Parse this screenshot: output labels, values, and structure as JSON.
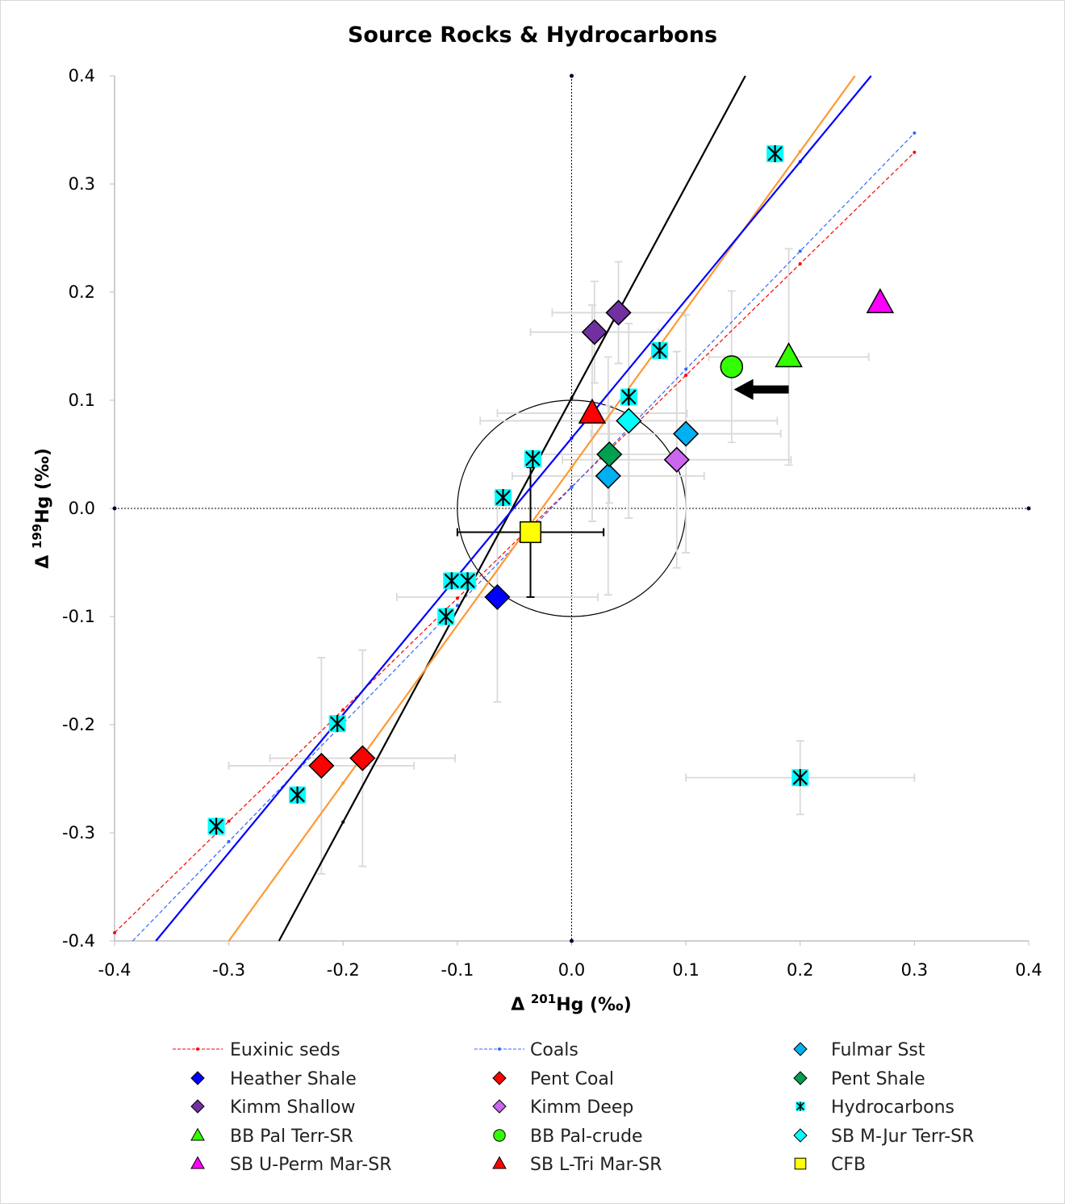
{
  "chart_data": {
    "type": "scatter",
    "title": "Source Rocks & Hydrocarbons",
    "xlabel": {
      "prefix": "Δ ",
      "sup": "201",
      "suffix": "Hg (‰)"
    },
    "ylabel": {
      "prefix": "Δ ",
      "sup": "199",
      "suffix": "Hg (‰)"
    },
    "xlim": [
      -0.4,
      0.4
    ],
    "ylim": [
      -0.4,
      0.4
    ],
    "xticks": [
      "-0.4",
      "-0.3",
      "-0.2",
      "-0.1",
      "0.0",
      "0.1",
      "0.2",
      "0.3",
      "0.4"
    ],
    "yticks": [
      "0.4",
      "0.3",
      "0.2",
      "0.1",
      "0.0",
      "-0.1",
      "-0.2",
      "-0.3",
      "-0.4"
    ],
    "grid": false,
    "legend_placement": "bottom",
    "reference_lines": {
      "x0": true,
      "y0": true,
      "style": "dotted"
    },
    "circle": {
      "center": [
        0,
        0
      ],
      "radius": 0.1
    },
    "arrow": {
      "from": [
        0.19,
        0.11
      ],
      "to": [
        0.142,
        0.11
      ],
      "color": "#000000"
    },
    "lines": [
      {
        "name": "Euxinic seds",
        "color": "#FF0000",
        "style": "dashed",
        "slope": 1.031,
        "intercept": 0.02,
        "x_range": [
          -0.4,
          0.3
        ],
        "marker_x": [
          -0.4,
          -0.3,
          -0.2,
          -0.1,
          0,
          0.1,
          0.2,
          0.3
        ]
      },
      {
        "name": "Coals",
        "color": "#3366FF",
        "style": "dashed",
        "slope": 1.092,
        "intercept": 0.0195,
        "x_range": [
          -0.385,
          0.3
        ],
        "marker_x": [
          -0.3,
          -0.2,
          -0.1,
          0,
          0.1,
          0.2,
          0.3
        ]
      },
      {
        "color": "#000000",
        "style": "solid",
        "slope": 1.96,
        "intercept": 0.102,
        "x_range": [
          -0.4,
          0.4
        ],
        "marker_x": [
          -0.2,
          0
        ]
      },
      {
        "color": "#FF9933",
        "style": "solid",
        "slope": 1.46,
        "intercept": 0.038,
        "x_range": [
          -0.4,
          0.4
        ],
        "marker_x": [
          -0.2,
          0,
          0.2
        ]
      },
      {
        "color": "#0000FF",
        "style": "solid",
        "slope": 1.278,
        "intercept": 0.065,
        "x_range": [
          -0.4,
          0.4
        ],
        "marker_x": [
          0,
          0.2
        ]
      }
    ],
    "series": [
      {
        "name": "Heather Shale",
        "marker": "diamond",
        "color": "#0000FF",
        "points": [
          {
            "x": -0.065,
            "y": -0.082,
            "xerr": 0.088,
            "yerr": 0.097
          }
        ]
      },
      {
        "name": "Pent Coal",
        "marker": "diamond",
        "color": "#FF0000",
        "points": [
          {
            "x": -0.219,
            "y": -0.238,
            "xerr": 0.081,
            "yerr": 0.1
          },
          {
            "x": -0.183,
            "y": -0.231,
            "xerr": 0.081,
            "yerr": 0.1
          }
        ]
      },
      {
        "name": "Kimm Shallow",
        "marker": "diamond",
        "color": "#7030A0",
        "points": [
          {
            "x": 0.02,
            "y": 0.163,
            "xerr": 0.056,
            "yerr": 0.047
          },
          {
            "x": 0.041,
            "y": 0.181,
            "xerr": 0.058,
            "yerr": 0.047
          }
        ]
      },
      {
        "name": "Kimm Deep",
        "marker": "diamond",
        "color": "#CC66EE",
        "points": [
          {
            "x": 0.092,
            "y": 0.045,
            "xerr": 0.1,
            "yerr": 0.1
          }
        ]
      },
      {
        "name": "Fulmar Sst",
        "marker": "diamond",
        "color": "#00B0F0",
        "points": [
          {
            "x": 0.032,
            "y": 0.03,
            "xerr": 0.084,
            "yerr": 0.11
          },
          {
            "x": 0.1,
            "y": 0.069,
            "xerr": 0.083,
            "yerr": 0.11
          }
        ]
      },
      {
        "name": "Pent Shale",
        "marker": "diamond",
        "color": "#00A050",
        "points": [
          {
            "x": 0.033,
            "y": 0.05,
            "xerr": 0.064,
            "yerr": 0.045
          }
        ]
      },
      {
        "name": "Hydrocarbons",
        "marker": "asterisk-square",
        "color": "#00FFFF",
        "points": [
          {
            "x": 0.178,
            "y": 0.328
          },
          {
            "x": 0.077,
            "y": 0.146
          },
          {
            "x": 0.05,
            "y": 0.103
          },
          {
            "x": -0.034,
            "y": 0.046
          },
          {
            "x": -0.06,
            "y": 0.01
          },
          {
            "x": -0.105,
            "y": -0.067
          },
          {
            "x": -0.091,
            "y": -0.067
          },
          {
            "x": -0.11,
            "y": -0.1
          },
          {
            "x": -0.205,
            "y": -0.199
          },
          {
            "x": -0.24,
            "y": -0.265
          },
          {
            "x": -0.311,
            "y": -0.294
          },
          {
            "x": 0.2,
            "y": -0.249,
            "xerr": 0.1,
            "yerr": 0.034
          }
        ]
      },
      {
        "name": "BB Pal Terr-SR",
        "marker": "triangle",
        "color": "#33FF00",
        "points": [
          {
            "x": 0.19,
            "y": 0.14,
            "xerr": 0.07,
            "yerr": 0.1
          }
        ]
      },
      {
        "name": "BB Pal-crude",
        "marker": "circle",
        "color": "#33FF00",
        "points": [
          {
            "x": 0.14,
            "y": 0.131,
            "yerr": 0.07
          }
        ]
      },
      {
        "name": "SB M-Jur Terr-SR",
        "marker": "diamond",
        "color": "#00FFFF",
        "points": [
          {
            "x": 0.05,
            "y": 0.081,
            "xerr": 0.13,
            "yerr": 0.09
          }
        ]
      },
      {
        "name": "SB U-Perm Mar-SR",
        "marker": "triangle",
        "color": "#FF00FF",
        "points": [
          {
            "x": 0.27,
            "y": 0.19
          }
        ]
      },
      {
        "name": "SB L-Tri Mar-SR",
        "marker": "triangle",
        "color": "#FF0000",
        "points": [
          {
            "x": 0.018,
            "y": 0.088,
            "xerr": 0.083,
            "yerr": 0.1
          }
        ]
      },
      {
        "name": "CFB",
        "marker": "square",
        "color": "#FFFF00",
        "errcolor": "#000000",
        "points": [
          {
            "x": -0.036,
            "y": -0.022,
            "xerr": 0.064,
            "yerr": 0.06
          }
        ]
      }
    ],
    "legend": [
      {
        "label": "Euxinic seds",
        "kind": "line",
        "color": "#FF0000"
      },
      {
        "label": "Coals",
        "kind": "line",
        "color": "#3366FF"
      },
      {
        "label": "Fulmar Sst",
        "kind": "diamond",
        "color": "#00B0F0"
      },
      {
        "label": "Heather Shale",
        "kind": "diamond",
        "color": "#0000FF"
      },
      {
        "label": "Pent Coal",
        "kind": "diamond",
        "color": "#FF0000"
      },
      {
        "label": "Pent Shale",
        "kind": "diamond",
        "color": "#00A050"
      },
      {
        "label": "Kimm Shallow",
        "kind": "diamond",
        "color": "#7030A0"
      },
      {
        "label": "Kimm Deep",
        "kind": "diamond",
        "color": "#CC66EE"
      },
      {
        "label": "Hydrocarbons",
        "kind": "asterisk-square",
        "color": "#00FFFF"
      },
      {
        "label": "BB Pal Terr-SR",
        "kind": "triangle",
        "color": "#33FF00"
      },
      {
        "label": "BB Pal-crude",
        "kind": "circle",
        "color": "#33FF00"
      },
      {
        "label": "SB M-Jur Terr-SR",
        "kind": "diamond",
        "color": "#00FFFF"
      },
      {
        "label": "SB U-Perm Mar-SR",
        "kind": "triangle",
        "color": "#FF00FF"
      },
      {
        "label": "SB L-Tri Mar-SR",
        "kind": "triangle",
        "color": "#FF0000"
      },
      {
        "label": "CFB",
        "kind": "square",
        "color": "#FFFF00"
      }
    ]
  }
}
